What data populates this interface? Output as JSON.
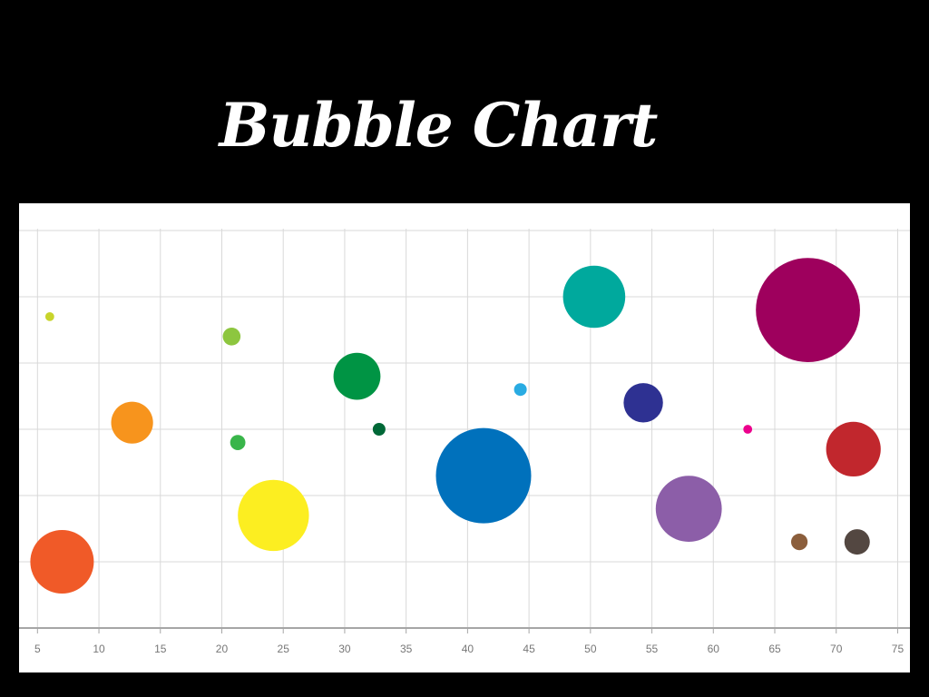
{
  "title": "Bubble Chart",
  "chart_data": {
    "type": "scatter",
    "variant": "bubble",
    "title": "Bubble Chart",
    "xlabel": "",
    "ylabel": "",
    "xlim": [
      3.5,
      76
    ],
    "ylim": [
      0,
      6
    ],
    "x_ticks": [
      5,
      10,
      15,
      20,
      25,
      30,
      35,
      40,
      45,
      50,
      55,
      60,
      65,
      70,
      75
    ],
    "y_gridlines": [
      1,
      2,
      3,
      4,
      5,
      6
    ],
    "y_tick_labels_shown": false,
    "grid": true,
    "legend": "none",
    "bubbles": [
      {
        "x": 6.0,
        "y": 4.7,
        "size": 0.7,
        "color": "#c8d42b"
      },
      {
        "x": 7.0,
        "y": 1.0,
        "size": 5.0,
        "color": "#f05a28"
      },
      {
        "x": 12.7,
        "y": 3.1,
        "size": 3.3,
        "color": "#f7941d"
      },
      {
        "x": 20.8,
        "y": 4.4,
        "size": 1.4,
        "color": "#8dc63f"
      },
      {
        "x": 21.3,
        "y": 2.8,
        "size": 1.2,
        "color": "#39b54a"
      },
      {
        "x": 24.2,
        "y": 1.7,
        "size": 5.6,
        "color": "#fcee21"
      },
      {
        "x": 31.0,
        "y": 3.8,
        "size": 3.7,
        "color": "#009444"
      },
      {
        "x": 32.8,
        "y": 3.0,
        "size": 1.0,
        "color": "#006837"
      },
      {
        "x": 41.3,
        "y": 2.3,
        "size": 7.5,
        "color": "#0071bc"
      },
      {
        "x": 44.3,
        "y": 3.6,
        "size": 1.0,
        "color": "#29abe2"
      },
      {
        "x": 50.3,
        "y": 5.0,
        "size": 4.9,
        "color": "#00a99d"
      },
      {
        "x": 54.3,
        "y": 3.4,
        "size": 3.1,
        "color": "#2e3192"
      },
      {
        "x": 58.0,
        "y": 1.8,
        "size": 5.2,
        "color": "#8c5ea8"
      },
      {
        "x": 62.8,
        "y": 3.0,
        "size": 0.7,
        "color": "#ec008c"
      },
      {
        "x": 67.0,
        "y": 1.3,
        "size": 1.3,
        "color": "#8b5e3c"
      },
      {
        "x": 67.7,
        "y": 4.8,
        "size": 8.2,
        "color": "#9e005d"
      },
      {
        "x": 71.4,
        "y": 2.7,
        "size": 4.3,
        "color": "#c1272d"
      },
      {
        "x": 71.7,
        "y": 1.3,
        "size": 2.0,
        "color": "#534741"
      }
    ]
  }
}
